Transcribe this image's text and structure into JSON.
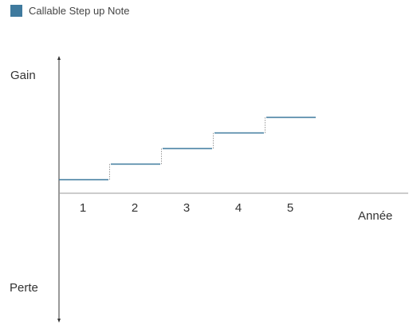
{
  "chart_data": {
    "type": "line",
    "title": "",
    "legend": {
      "position": "top-left",
      "entries": [
        {
          "name": "Callable Step up Note",
          "color": "#3f7a9e"
        }
      ]
    },
    "xlabel": "Année",
    "ylabel_top": "Gain",
    "ylabel_bottom": "Perte",
    "categories": [
      "1",
      "2",
      "3",
      "4",
      "5"
    ],
    "series": [
      {
        "name": "Callable Step up Note",
        "values": [
          1,
          2,
          3,
          4,
          5
        ],
        "color": "#3f7a9e"
      }
    ],
    "grid": false
  }
}
